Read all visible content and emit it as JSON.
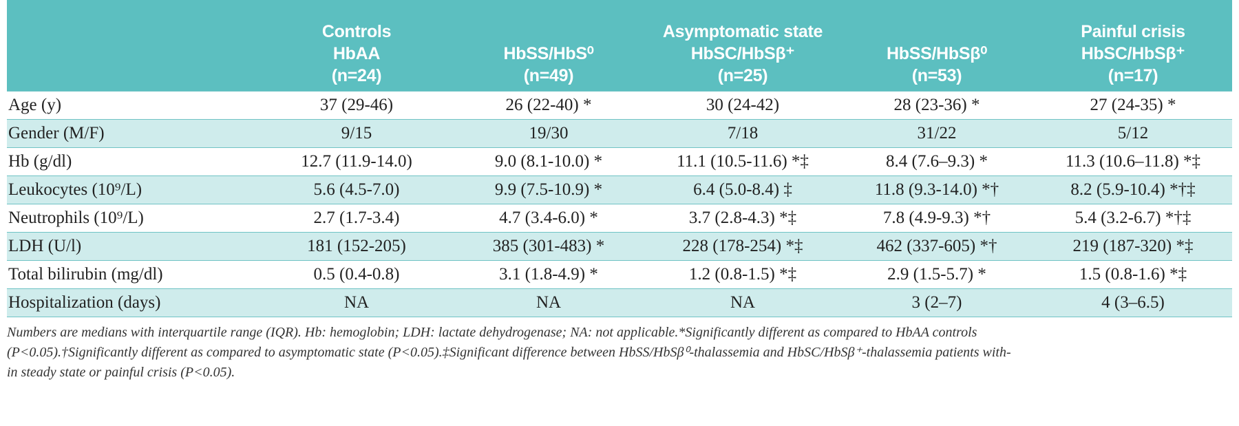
{
  "table": {
    "header": [
      {
        "lines": [
          "",
          "",
          "",
          ""
        ]
      },
      {
        "lines": [
          "Controls",
          "HbAA",
          "(n=24)"
        ]
      },
      {
        "lines": [
          "",
          "HbSS/HbS⁰",
          "(n=49)"
        ]
      },
      {
        "lines": [
          "Asymptomatic state",
          "HbSC/HbSβ⁺",
          "(n=25)"
        ]
      },
      {
        "lines": [
          "",
          "HbSS/HbSβ⁰",
          "(n=53)"
        ]
      },
      {
        "lines": [
          "Painful crisis",
          "HbSC/HbSβ⁺",
          "(n=17)"
        ]
      }
    ],
    "rows": [
      {
        "label": "Age (y)",
        "cells": [
          "37 (29-46)",
          "26 (22-40) *",
          "30 (24-42)",
          "28 (23-36) *",
          "27 (24-35) *"
        ]
      },
      {
        "label": "Gender (M/F)",
        "cells": [
          "9/15",
          "19/30",
          "7/18",
          "31/22",
          "5/12"
        ]
      },
      {
        "label": "Hb (g/dl)",
        "cells": [
          "12.7 (11.9-14.0)",
          "9.0 (8.1-10.0) *",
          "11.1 (10.5-11.6) *‡",
          "8.4 (7.6–9.3) *",
          "11.3 (10.6–11.8) *‡"
        ]
      },
      {
        "label": "Leukocytes (10⁹/L)",
        "cells": [
          "5.6 (4.5-7.0)",
          "9.9 (7.5-10.9) *",
          "6.4 (5.0-8.4) ‡",
          "11.8 (9.3-14.0) *†",
          "8.2 (5.9-10.4) *†‡"
        ]
      },
      {
        "label": "Neutrophils (10⁹/L)",
        "cells": [
          "2.7 (1.7-3.4)",
          "4.7 (3.4-6.0) *",
          "3.7 (2.8-4.3) *‡",
          "7.8 (4.9-9.3) *†",
          "5.4 (3.2-6.7) *†‡"
        ]
      },
      {
        "label": "LDH (U/l)",
        "cells": [
          "181 (152-205)",
          "385 (301-483) *",
          "228 (178-254) *‡",
          "462 (337-605) *†",
          "219 (187-320) *‡"
        ]
      },
      {
        "label": "Total bilirubin (mg/dl)",
        "cells": [
          "0.5 (0.4-0.8)",
          "3.1 (1.8-4.9) *",
          "1.2 (0.8-1.5) *‡",
          "2.9 (1.5-5.7) *",
          "1.5 (0.8-1.6) *‡"
        ]
      },
      {
        "label": "Hospitalization (days)",
        "cells": [
          "NA",
          "NA",
          "NA",
          "3 (2–7)",
          "4 (3–6.5)"
        ]
      }
    ]
  },
  "footnote": {
    "lines": [
      "Numbers are medians with interquartile range (IQR). Hb: hemoglobin; LDH: lactate dehydrogenase; NA: not applicable.*Significantly different as compared to HbAA controls",
      "(P<0.05).†Significantly different as compared to asymptomatic state (P<0.05).‡Significant difference between HbSS/HbSβ⁰-thalassemia and HbSC/HbSβ⁺-thalassemia patients with-",
      "in steady state or painful crisis (P<0.05)."
    ]
  },
  "colors": {
    "header_bg": "#5cbfc0",
    "shaded_row": "#cfecec",
    "rule": "#6fc3c4"
  }
}
